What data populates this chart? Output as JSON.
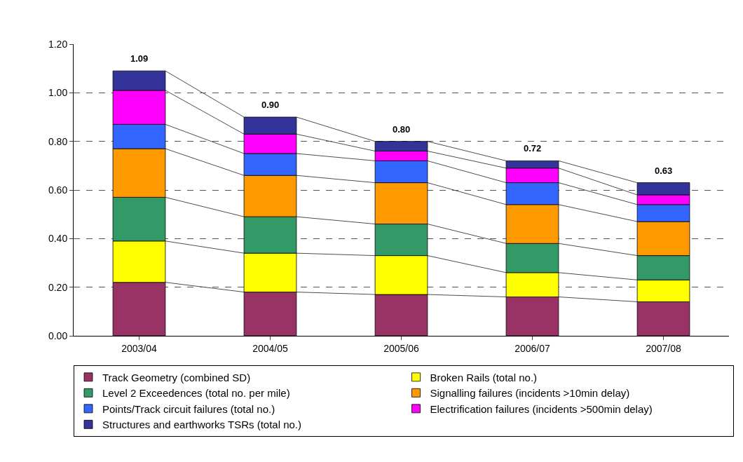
{
  "chart_data": {
    "type": "bar",
    "stacked": true,
    "categories": [
      "2003/04",
      "2004/05",
      "2005/06",
      "2006/07",
      "2007/08"
    ],
    "series": [
      {
        "name": "Track Geometry (combined SD)",
        "color": "#993366",
        "values": [
          0.22,
          0.18,
          0.17,
          0.16,
          0.14
        ]
      },
      {
        "name": "Broken Rails (total no.)",
        "color": "#ffff00",
        "values": [
          0.17,
          0.16,
          0.16,
          0.1,
          0.09
        ]
      },
      {
        "name": "Level 2 Exceedences (total no. per mile)",
        "color": "#339966",
        "values": [
          0.18,
          0.15,
          0.13,
          0.12,
          0.1
        ]
      },
      {
        "name": "Signalling failures (incidents >10min delay)",
        "color": "#ff9900",
        "values": [
          0.2,
          0.17,
          0.17,
          0.16,
          0.14
        ]
      },
      {
        "name": "Points/Track circuit failures (total no.)",
        "color": "#3366ff",
        "values": [
          0.1,
          0.09,
          0.09,
          0.09,
          0.07
        ]
      },
      {
        "name": "Electrification failures (incidents >500min delay)",
        "color": "#ff00ff",
        "values": [
          0.14,
          0.08,
          0.04,
          0.06,
          0.04
        ]
      },
      {
        "name": "Structures and earthworks TSRs (total no.)",
        "color": "#333399",
        "values": [
          0.08,
          0.07,
          0.04,
          0.03,
          0.05
        ]
      }
    ],
    "totals": [
      "1.09",
      "0.90",
      "0.80",
      "0.72",
      "0.63"
    ],
    "ylim": [
      0,
      1.2
    ],
    "yticks": [
      {
        "value": 0,
        "label": "0.00"
      },
      {
        "value": 0.2,
        "label": "0.20"
      },
      {
        "value": 0.4,
        "label": "0.40"
      },
      {
        "value": 0.6,
        "label": "0.60"
      },
      {
        "value": 0.8,
        "label": "0.80"
      },
      {
        "value": 1.0,
        "label": "1.00"
      },
      {
        "value": 1.2,
        "label": "1.20"
      }
    ],
    "grid": "y",
    "legend": "bottom"
  }
}
